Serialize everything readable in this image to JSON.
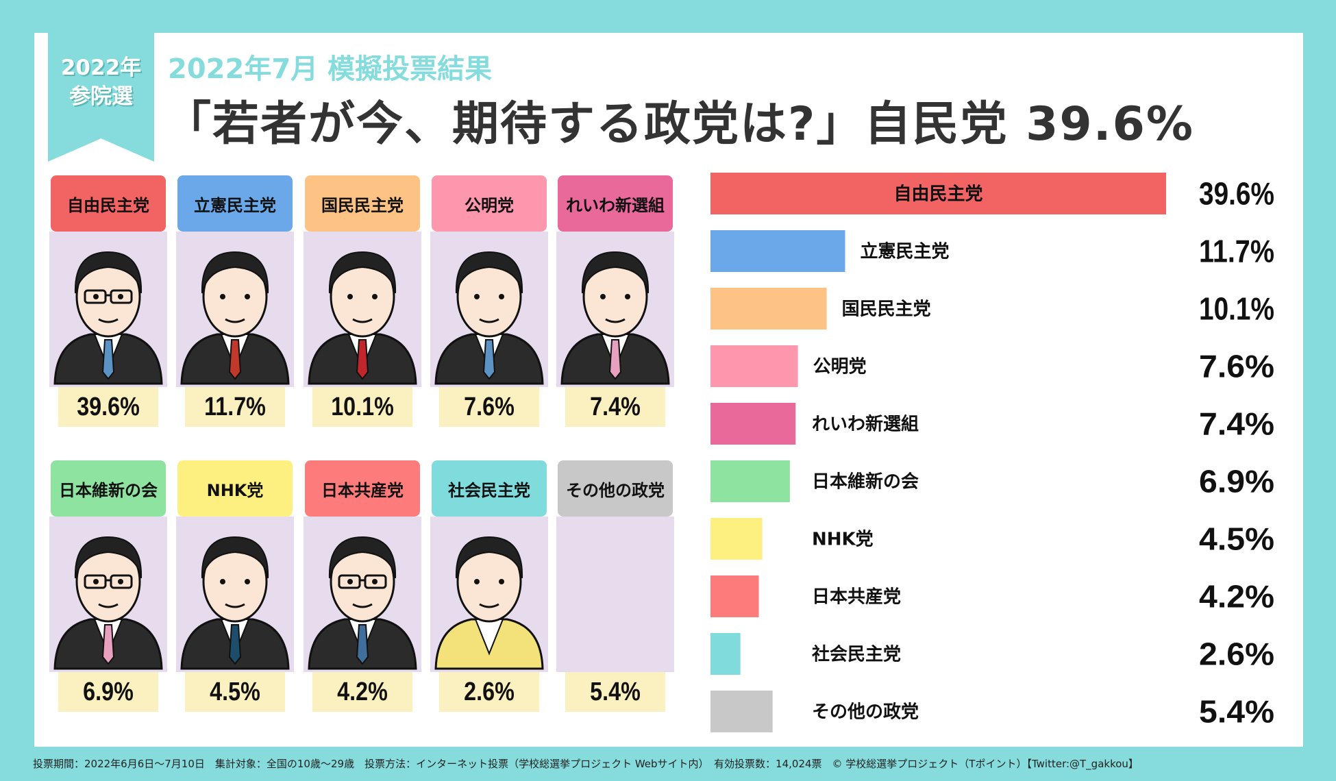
{
  "ribbon": {
    "year": "2022年",
    "election": "参院選"
  },
  "header": {
    "subtitle": "2022年7月 模擬投票結果",
    "title": "「若者が今、期待する政党は?」自民党 39.6%"
  },
  "colors": {
    "background": "#86dcdc",
    "portrait_bg": "#e6dcee",
    "percent_bg": "#fbf0c0"
  },
  "chart_data": {
    "type": "bar",
    "orientation": "horizontal",
    "unit": "%",
    "categories": [
      "自由民主党",
      "立憲民主党",
      "国民民主党",
      "公明党",
      "れいわ新選組",
      "日本維新の会",
      "NHK党",
      "日本共産党",
      "社会民主党",
      "その他の政党"
    ],
    "values": [
      39.6,
      11.7,
      10.1,
      7.6,
      7.4,
      6.9,
      4.5,
      4.2,
      2.6,
      5.4
    ],
    "labels": [
      "39.6%",
      "11.7%",
      "10.1%",
      "7.6%",
      "7.4%",
      "6.9%",
      "4.5%",
      "4.2%",
      "2.6%",
      "5.4%"
    ],
    "colors": [
      "#f26363",
      "#6aa8ea",
      "#fdc385",
      "#fd97ae",
      "#e8699a",
      "#8ee3a0",
      "#fdf080",
      "#fd7b7b",
      "#80dcdc",
      "#c8c8c8"
    ],
    "xlim": [
      0,
      39.6
    ],
    "grid": false,
    "legend": "none"
  },
  "cards": [
    {
      "name": "自由民主党",
      "pct": "39.6%",
      "portrait": "man-glasses",
      "tie": "#5b93c4"
    },
    {
      "name": "立憲民主党",
      "pct": "11.7%",
      "portrait": "man",
      "tie": "#c0392b"
    },
    {
      "name": "国民民主党",
      "pct": "10.1%",
      "portrait": "man",
      "tie": "#c0262b"
    },
    {
      "name": "公明党",
      "pct": "7.6%",
      "portrait": "man",
      "tie": "#5b93c4"
    },
    {
      "name": "れいわ新選組",
      "pct": "7.4%",
      "portrait": "man",
      "tie": "#e8a0c0"
    },
    {
      "name": "日本維新の会",
      "pct": "6.9%",
      "portrait": "man-glasses",
      "tie": "#e8a0c0"
    },
    {
      "name": "NHK党",
      "pct": "4.5%",
      "portrait": "man",
      "tie": "#1e4d6b"
    },
    {
      "name": "日本共産党",
      "pct": "4.2%",
      "portrait": "man-glasses",
      "tie": "#3f6f9a"
    },
    {
      "name": "社会民主党",
      "pct": "2.6%",
      "portrait": "woman",
      "tie": "#f3e27a"
    },
    {
      "name": "その他の政党",
      "pct": "5.4%",
      "portrait": "none",
      "tie": ""
    }
  ],
  "footer": "投票期間：2022年6月6日〜7月10日　集計対象：全国の10歳〜29歳　投票方法：インターネット投票（学校総選挙プロジェクト Webサイト内）　有効投票数：14,024票　© 学校総選挙プロジェクト（Tポイント）【Twitter:@T_gakkou】"
}
